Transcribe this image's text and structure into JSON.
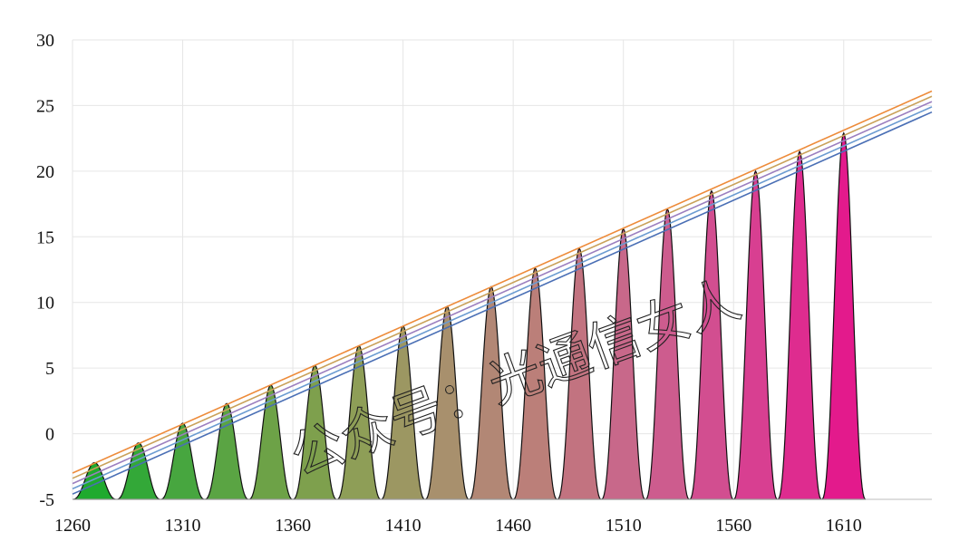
{
  "chart_data": {
    "type": "area",
    "title": "",
    "xlabel": "",
    "ylabel": "",
    "xlim": [
      1260,
      1650
    ],
    "ylim": [
      -5,
      30
    ],
    "x_ticks": [
      "1260",
      "1310",
      "1360",
      "1410",
      "1460",
      "1510",
      "1560",
      "1610"
    ],
    "y_ticks": [
      "30",
      "25",
      "20",
      "15",
      "10",
      "5",
      "0",
      "-5"
    ],
    "grid": true,
    "peaks": {
      "centers": [
        1270,
        1290,
        1310,
        1330,
        1350,
        1370,
        1390,
        1410,
        1430,
        1450,
        1470,
        1490,
        1510,
        1530,
        1550,
        1570,
        1590,
        1610
      ],
      "heights": [
        -2.2,
        -0.7,
        0.8,
        2.3,
        3.7,
        5.2,
        6.7,
        8.2,
        9.7,
        11.2,
        12.6,
        14.1,
        15.6,
        17.1,
        18.5,
        20.0,
        21.5,
        22.9
      ],
      "baseline": -5,
      "fill_colors": [
        "#1faa2e",
        "#33a838",
        "#47a63f",
        "#5aa443",
        "#6da247",
        "#7ea04d",
        "#8e9e57",
        "#9c9762",
        "#a8906d",
        "#b28775",
        "#bb7f79",
        "#c27380",
        "#c8688a",
        "#cd5c8e",
        "#d24e90",
        "#d83f91",
        "#de2c8f",
        "#e31a8c"
      ],
      "outline_color": "#111111"
    },
    "lines": [
      {
        "x": [
          1260,
          1650
        ],
        "y": [
          -3.0,
          26.1
        ],
        "color": "#ed8b3a"
      },
      {
        "x": [
          1260,
          1650
        ],
        "y": [
          -3.4,
          25.7
        ],
        "color": "#c9a15a"
      },
      {
        "x": [
          1260,
          1650
        ],
        "y": [
          -3.8,
          25.3
        ],
        "color": "#9b7fbf"
      },
      {
        "x": [
          1260,
          1650
        ],
        "y": [
          -4.2,
          24.9
        ],
        "color": "#6b9bd1"
      },
      {
        "x": [
          1260,
          1650
        ],
        "y": [
          -4.6,
          24.5
        ],
        "color": "#4a6fb5"
      }
    ]
  },
  "watermark": "公众号：光通信女人"
}
